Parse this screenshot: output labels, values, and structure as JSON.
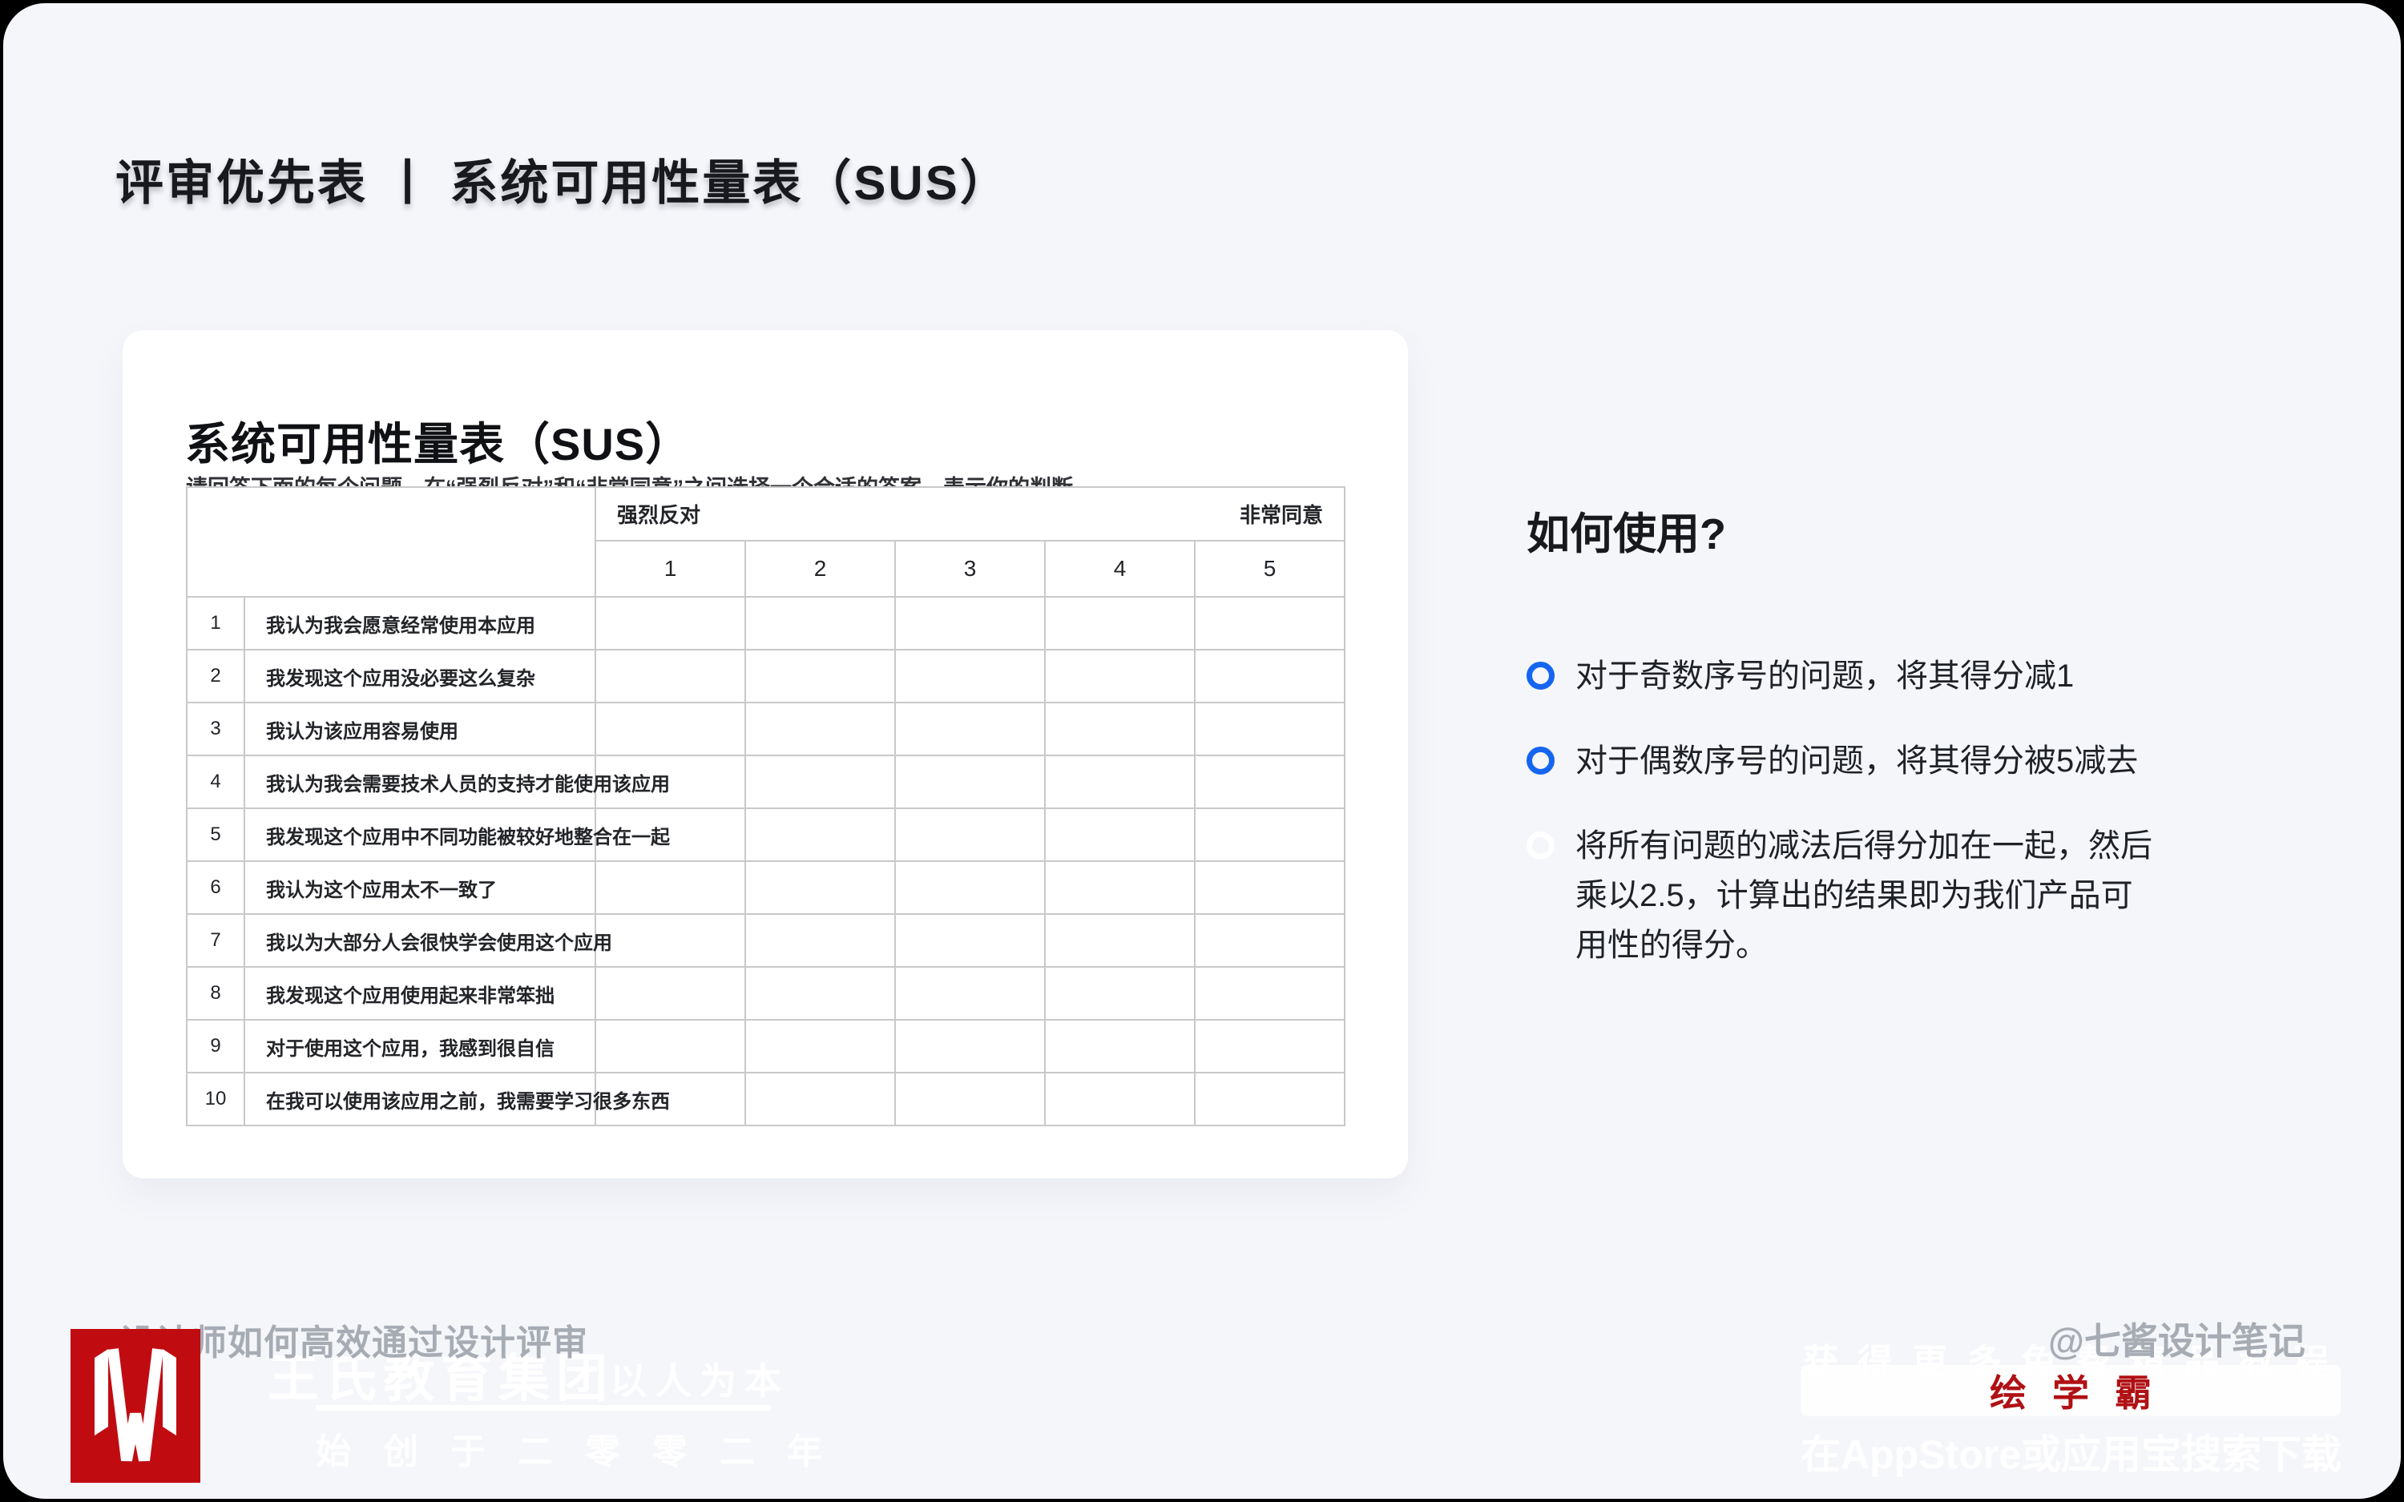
{
  "page": {
    "slide_title": "评审优先表 丨 系统可用性量表（SUS）"
  },
  "card": {
    "title": "系统可用性量表（SUS）",
    "instruction": "请回答下面的每个问题，在“强烈反对”和“非常同意”之间选择一个合适的答案，表示你的判断。",
    "table": {
      "scale_left_label": "强烈反对",
      "scale_right_label": "非常同意",
      "scale_values": [
        "1",
        "2",
        "3",
        "4",
        "5"
      ],
      "rows": [
        {
          "num": "1",
          "question": "我认为我会愿意经常使用本应用"
        },
        {
          "num": "2",
          "question": "我发现这个应用没必要这么复杂"
        },
        {
          "num": "3",
          "question": "我认为该应用容易使用"
        },
        {
          "num": "4",
          "question": "我认为我会需要技术人员的支持才能使用该应用"
        },
        {
          "num": "5",
          "question": "我发现这个应用中不同功能被较好地整合在一起"
        },
        {
          "num": "6",
          "question": "我认为这个应用太不一致了"
        },
        {
          "num": "7",
          "question": "我以为大部分人会很快学会使用这个应用"
        },
        {
          "num": "8",
          "question": "我发现这个应用使用起来非常笨拙"
        },
        {
          "num": "9",
          "question": "对于使用这个应用，我感到很自信"
        },
        {
          "num": "10",
          "question": "在我可以使用该应用之前，我需要学习很多东西"
        }
      ]
    }
  },
  "how_to": {
    "heading": "如何使用?",
    "bullets": [
      {
        "text": "对于奇数序号的问题，将其得分减1",
        "marker_color": "#1565F0"
      },
      {
        "text": "对于偶数序号的问题，将其得分被5减去",
        "marker_color": "#1565F0"
      },
      {
        "text": "将所有问题的减法后得分加在一起，然后乘以2.5，计算出的结果即为我们产品可用性的得分。",
        "marker_color": "#FFFFFF"
      }
    ]
  },
  "footer": {
    "left": {
      "watermark": "设计师如何高效通过设计评审",
      "brand_name": "王氏教育集团",
      "brand_motto": "以人为本",
      "brand_tagline": "始创于二零零二年"
    },
    "right": {
      "watermark": "@七酱设计笔记",
      "promo": "获得更多免费精品教程",
      "app_name": "绘学霸",
      "download": "在AppStore或应用宝搜索下载"
    }
  },
  "colors": {
    "page_background": "#F5F6FA",
    "card_background": "#FFFFFF",
    "table_border": "#C9C9C9",
    "text_dark": "#17191D",
    "accent_blue": "#1565F0",
    "watermark_gray": "#A7ACB4",
    "brand_red": "#C00C11",
    "app_name_red": "#B01114"
  }
}
